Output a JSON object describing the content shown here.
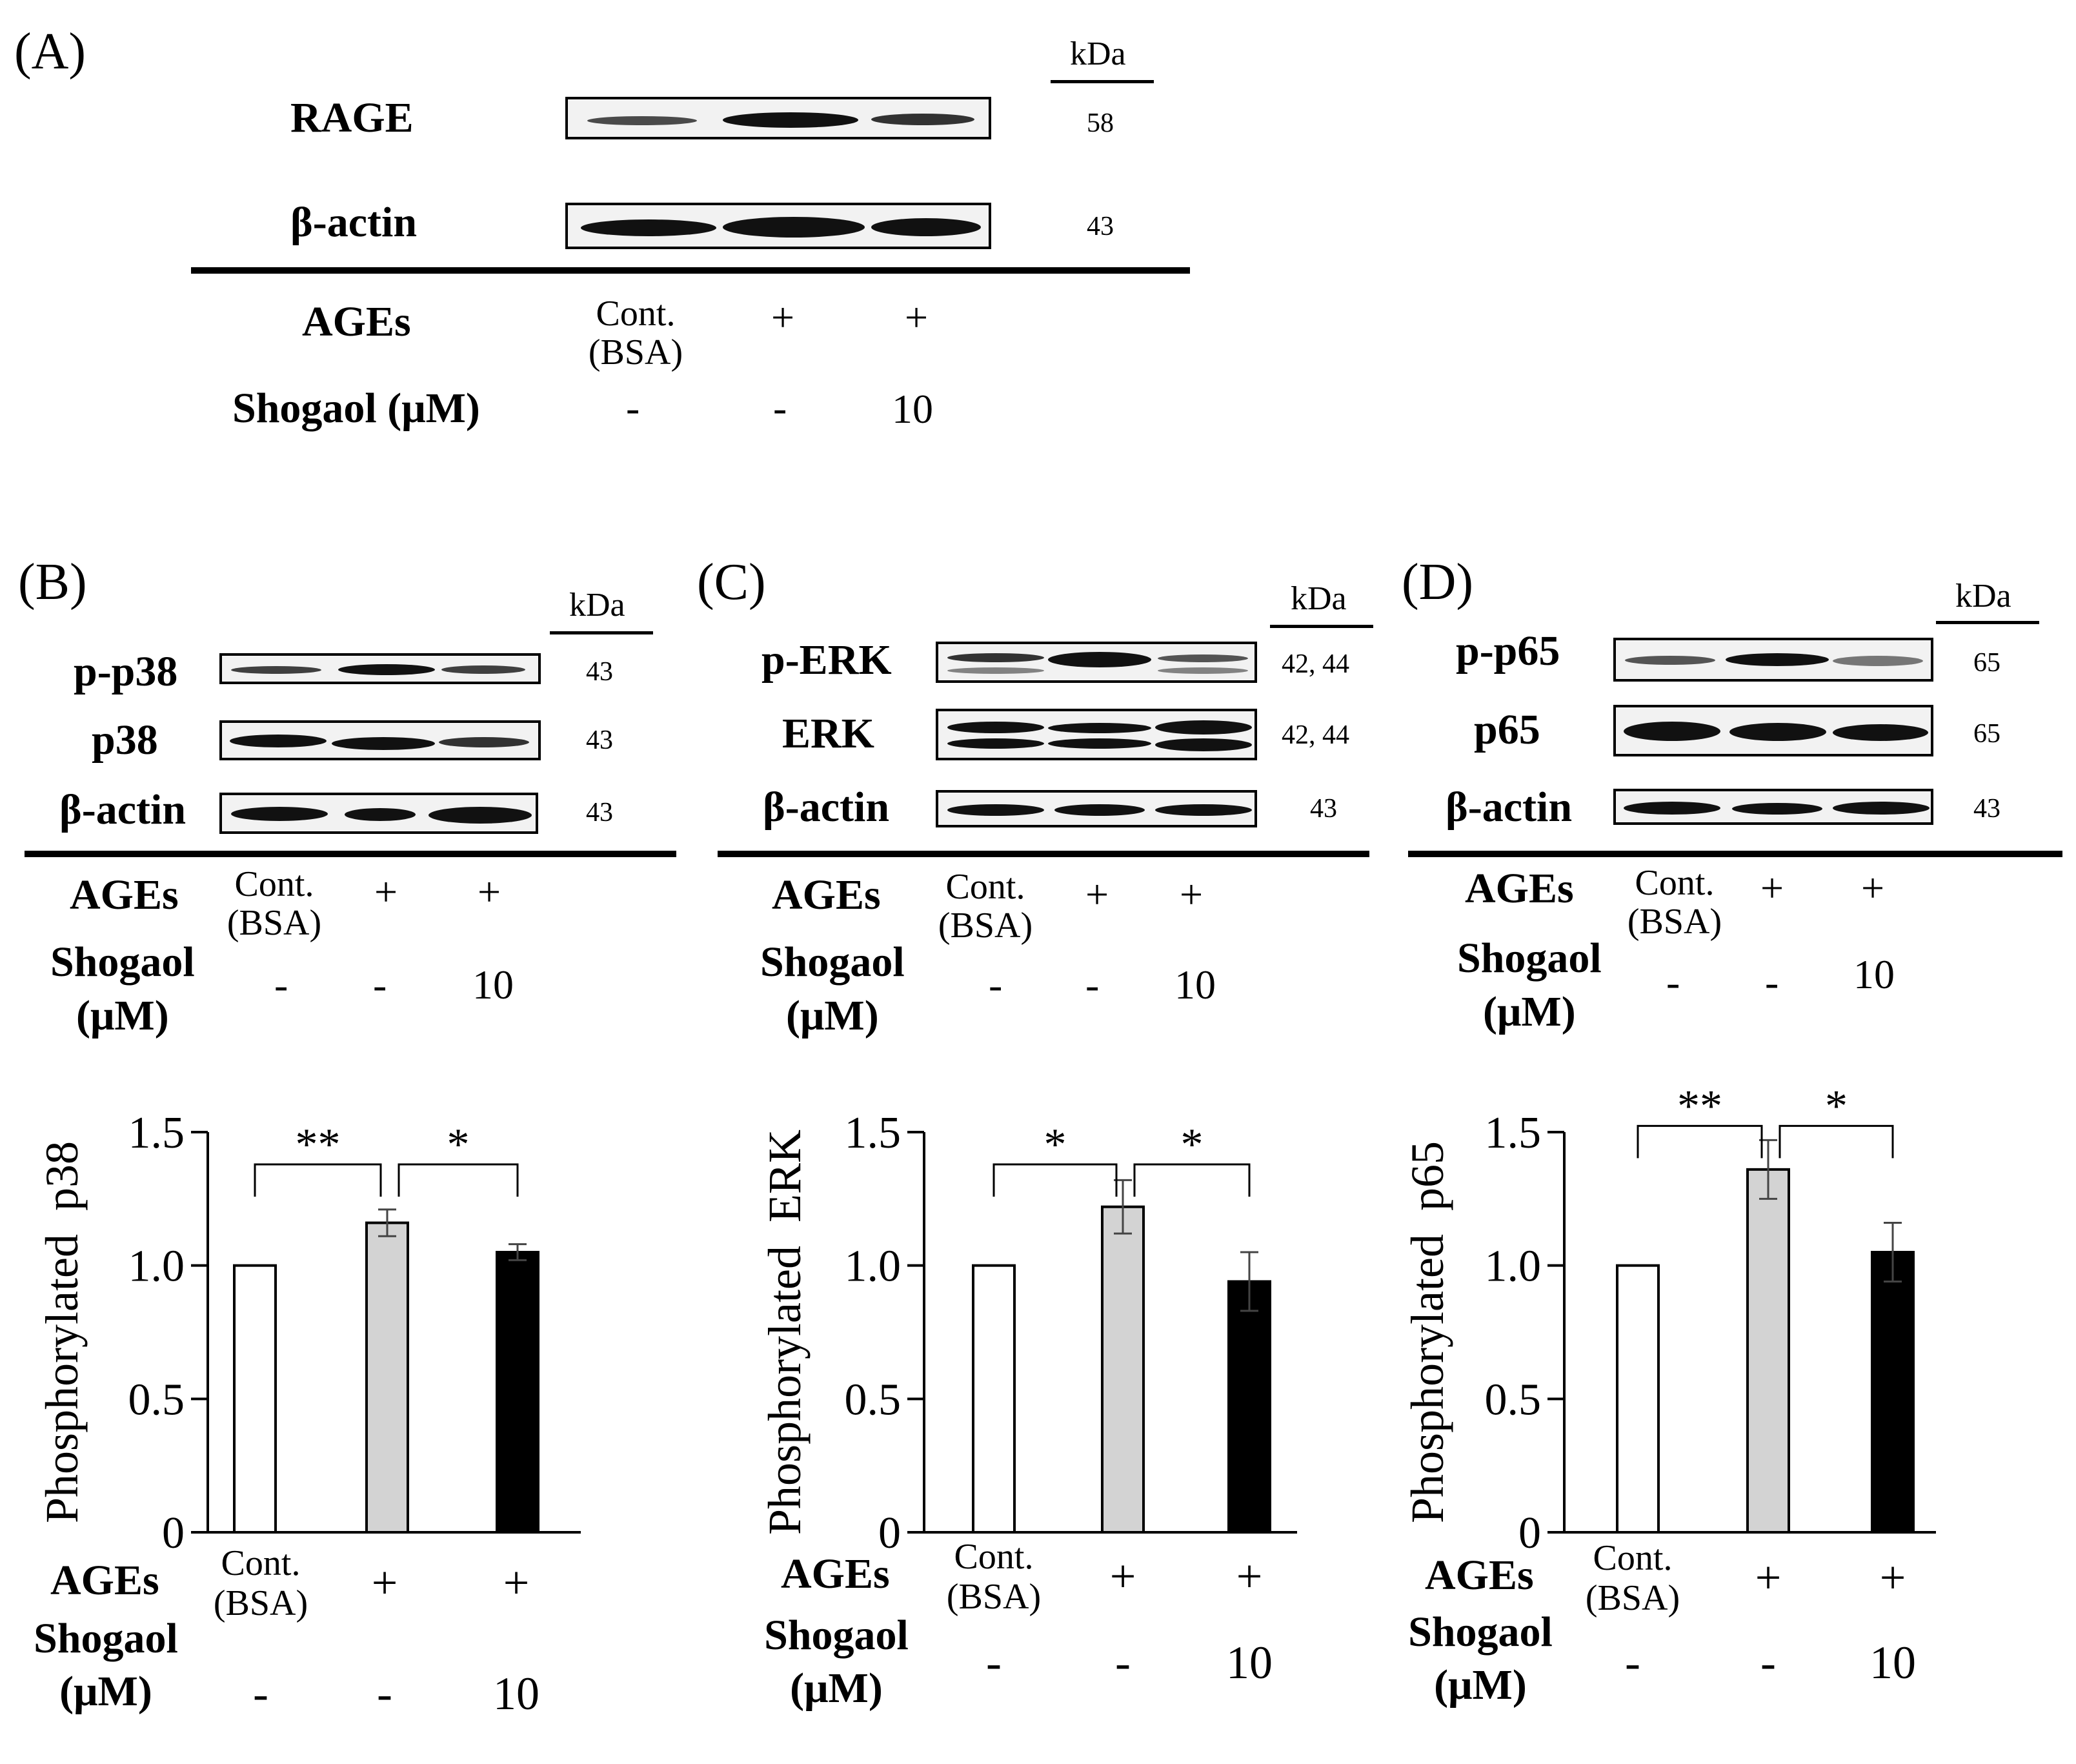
{
  "panels": {
    "A": {
      "label": "(A)",
      "kda_header": "kDa",
      "blots": [
        {
          "name": "RAGE",
          "kda": "58"
        },
        {
          "name": "β-actin",
          "kda": "43"
        }
      ],
      "conditions": {
        "ages_label": "AGEs",
        "ages_values": [
          "Cont.\n(BSA)",
          "+",
          "+"
        ],
        "shogaol_label": "Shogaol (μM)",
        "shogaol_values": [
          "-",
          "-",
          "10"
        ]
      }
    },
    "B": {
      "label": "(B)",
      "kda_header": "kDa",
      "blots": [
        {
          "name": "p-p38",
          "kda": "43"
        },
        {
          "name": "p38",
          "kda": "43"
        },
        {
          "name": "β-actin",
          "kda": "43"
        }
      ],
      "conditions": {
        "ages_label": "AGEs",
        "ages_values": [
          "Cont.\n(BSA)",
          "+",
          "+"
        ],
        "shogaol_label": "Shogaol\n(μM)",
        "shogaol_values": [
          "-",
          "-",
          "10"
        ]
      }
    },
    "C": {
      "label": "(C)",
      "kda_header": "kDa",
      "blots": [
        {
          "name": "p-ERK",
          "kda": "42, 44"
        },
        {
          "name": "ERK",
          "kda": "42, 44"
        },
        {
          "name": "β-actin",
          "kda": "43"
        }
      ],
      "conditions": {
        "ages_label": "AGEs",
        "ages_values": [
          "Cont.\n(BSA)",
          "+",
          "+"
        ],
        "shogaol_label": "Shogaol\n(μM)",
        "shogaol_values": [
          "-",
          "-",
          "10"
        ]
      }
    },
    "D": {
      "label": "(D)",
      "kda_header": "kDa",
      "blots": [
        {
          "name": "p-p65",
          "kda": "65"
        },
        {
          "name": "p65",
          "kda": "65"
        },
        {
          "name": "β-actin",
          "kda": "43"
        }
      ],
      "conditions": {
        "ages_label": "AGEs",
        "ages_values": [
          "Cont.\n(BSA)",
          "+",
          "+"
        ],
        "shogaol_label": "Shogaol\n(μM)",
        "shogaol_values": [
          "-",
          "-",
          "10"
        ]
      }
    }
  },
  "chart_data": [
    {
      "type": "bar",
      "panel": "B",
      "ylabel": "Phosphorylated  p38",
      "ylim": [
        0,
        1.5
      ],
      "yticks": [
        "0",
        "0.5",
        "1.0",
        "1.5"
      ],
      "values": [
        1.0,
        1.16,
        1.05
      ],
      "errors": [
        0,
        0.05,
        0.03
      ],
      "colors": [
        "#ffffff",
        "#d3d3d3",
        "#000000"
      ],
      "significance": [
        {
          "from": 0,
          "to": 1,
          "label": "**"
        },
        {
          "from": 1,
          "to": 2,
          "label": "*"
        }
      ],
      "x_conditions": {
        "ages_label": "AGEs",
        "ages_values": [
          "Cont.\n(BSA)",
          "+",
          "+"
        ],
        "shogaol_label": "Shogaol\n(μM)",
        "shogaol_values": [
          "-",
          "-",
          "10"
        ]
      }
    },
    {
      "type": "bar",
      "panel": "C",
      "ylabel": "Phosphorylated  ERK",
      "ylim": [
        0,
        1.5
      ],
      "yticks": [
        "0",
        "0.5",
        "1.0",
        "1.5"
      ],
      "values": [
        1.0,
        1.22,
        0.94
      ],
      "errors": [
        0,
        0.1,
        0.11
      ],
      "colors": [
        "#ffffff",
        "#d3d3d3",
        "#000000"
      ],
      "significance": [
        {
          "from": 0,
          "to": 1,
          "label": "*"
        },
        {
          "from": 1,
          "to": 2,
          "label": "*"
        }
      ],
      "x_conditions": {
        "ages_label": "AGEs",
        "ages_values": [
          "Cont.\n(BSA)",
          "+",
          "+"
        ],
        "shogaol_label": "Shogaol\n(μM)",
        "shogaol_values": [
          "-",
          "-",
          "10"
        ]
      }
    },
    {
      "type": "bar",
      "panel": "D",
      "ylabel": "Phosphorylated  p65",
      "ylim": [
        0,
        1.5
      ],
      "yticks": [
        "0",
        "0.5",
        "1.0",
        "1.5"
      ],
      "values": [
        1.0,
        1.36,
        1.05
      ],
      "errors": [
        0,
        0.11,
        0.11
      ],
      "colors": [
        "#ffffff",
        "#d3d3d3",
        "#000000"
      ],
      "significance": [
        {
          "from": 0,
          "to": 1,
          "label": "**"
        },
        {
          "from": 1,
          "to": 2,
          "label": "*"
        }
      ],
      "x_conditions": {
        "ages_label": "AGEs",
        "ages_values": [
          "Cont.\n(BSA)",
          "+",
          "+"
        ],
        "shogaol_label": "Shogaol\n(μM)",
        "shogaol_values": [
          "-",
          "-",
          "10"
        ]
      }
    }
  ]
}
